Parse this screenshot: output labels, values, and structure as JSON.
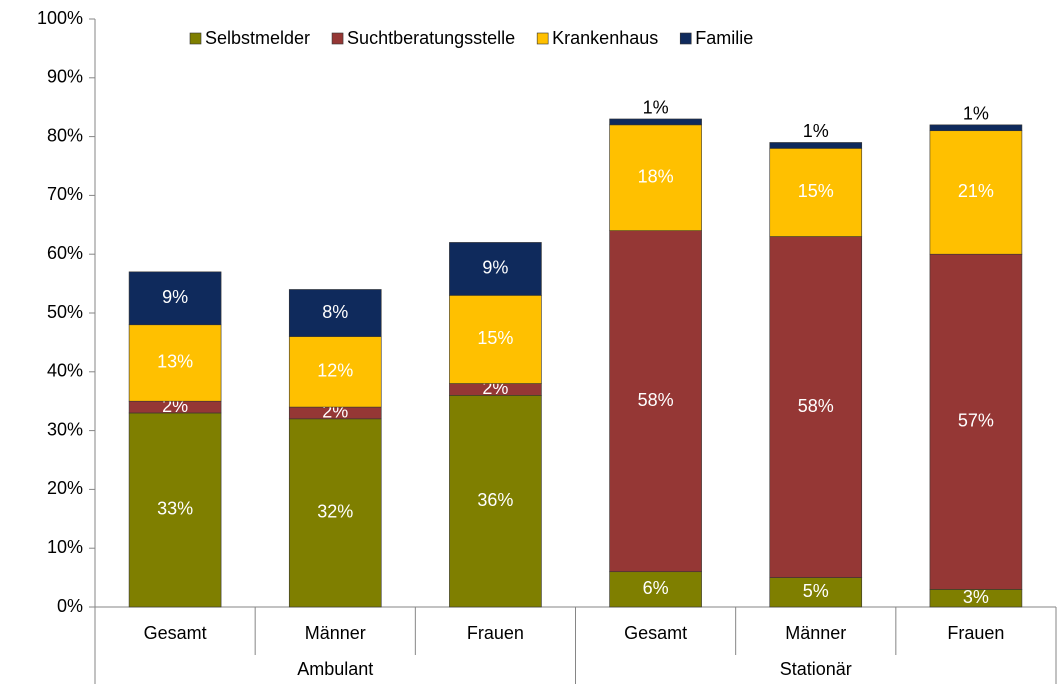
{
  "chart_data": {
    "type": "stacked-bar",
    "categories": [
      "Gesamt",
      "Männer",
      "Frauen",
      "Gesamt",
      "Männer",
      "Frauen"
    ],
    "groups": [
      "Ambulant",
      "Stationär"
    ],
    "series": [
      {
        "name": "Selbstmelder",
        "color": "#7f7f00",
        "values": [
          33,
          32,
          36,
          6,
          5,
          3
        ],
        "value_labels": [
          "33%",
          "32%",
          "36%",
          "6%",
          "5%",
          "3%"
        ]
      },
      {
        "name": "Suchtberatungsstelle",
        "color": "#953735",
        "values": [
          2,
          2,
          2,
          58,
          58,
          57
        ],
        "value_labels": [
          "2%",
          "2%",
          "2%",
          "58%",
          "58%",
          "57%"
        ]
      },
      {
        "name": "Krankenhaus",
        "color": "#ffc000",
        "values": [
          13,
          12,
          15,
          18,
          15,
          21
        ],
        "value_labels": [
          "13%",
          "12%",
          "15%",
          "18%",
          "15%",
          "21%"
        ]
      },
      {
        "name": "Familie",
        "color": "#0f2a5c",
        "values": [
          9,
          8,
          9,
          1,
          1,
          1
        ],
        "value_labels": [
          "9%",
          "8%",
          "9%",
          "1%",
          "1%",
          "1%"
        ]
      }
    ],
    "ylim": [
      0,
      100
    ],
    "yticks": [
      {
        "value": 0,
        "label": "0%"
      },
      {
        "value": 10,
        "label": "10%"
      },
      {
        "value": 20,
        "label": "20%"
      },
      {
        "value": 30,
        "label": "30%"
      },
      {
        "value": 40,
        "label": "40%"
      },
      {
        "value": 50,
        "label": "50%"
      },
      {
        "value": 60,
        "label": "60%"
      },
      {
        "value": 70,
        "label": "70%"
      },
      {
        "value": 80,
        "label": "80%"
      },
      {
        "value": 90,
        "label": "90%"
      },
      {
        "value": 100,
        "label": "100%"
      }
    ],
    "legend": "top"
  }
}
